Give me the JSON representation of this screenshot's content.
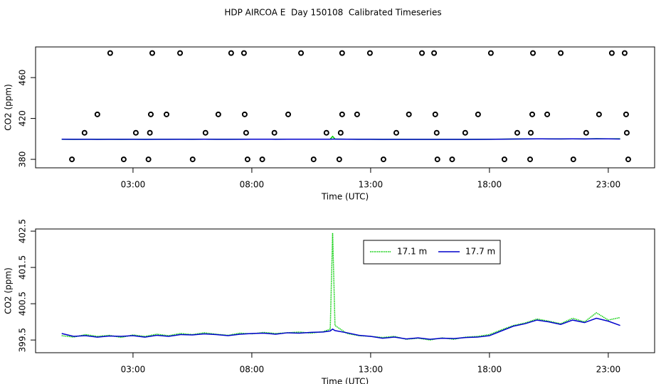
{
  "chart_data": [
    {
      "type": "scatter",
      "title": "HDP AIRCOA E  Day 150108  Calibrated Timeseries",
      "xlabel": "Time (UTC)",
      "ylabel": "CO2 (ppm)",
      "xlim": [
        -1.1,
        24.95
      ],
      "ylim": [
        371.7,
        490
      ],
      "xticks": [
        {
          "value": 3,
          "label": "03:00"
        },
        {
          "value": 8,
          "label": "08:00"
        },
        {
          "value": 13,
          "label": "13:00"
        },
        {
          "value": 18,
          "label": "18:00"
        },
        {
          "value": 23,
          "label": "23:00"
        }
      ],
      "yticks": [
        380,
        420,
        460
      ],
      "point_color": "#000000",
      "x": [
        2.04,
        3.81,
        4.98,
        7.13,
        7.67,
        10.07,
        11.8,
        12.97,
        15.16,
        15.67,
        18.06,
        19.83,
        21.0,
        23.15,
        23.69,
        1.5,
        3.75,
        4.41,
        6.59,
        7.7,
        9.53,
        11.8,
        12.43,
        14.61,
        15.72,
        17.52,
        19.8,
        20.43,
        22.61,
        23.75,
        0.96,
        3.12,
        3.71,
        6.05,
        7.76,
        8.95,
        11.14,
        11.74,
        14.08,
        15.78,
        16.98,
        19.17,
        19.74,
        22.07,
        23.78,
        0.43,
        2.61,
        3.65,
        5.51,
        7.82,
        8.44,
        10.6,
        11.68,
        13.54,
        15.81,
        16.43,
        18.63,
        19.71,
        21.53,
        23.84
      ],
      "values": [
        484,
        484,
        484,
        484,
        484,
        484,
        484,
        484,
        484,
        484,
        484,
        484,
        484,
        484,
        484,
        424,
        424,
        424,
        424,
        424,
        424,
        424,
        424,
        424,
        424,
        424,
        424,
        424,
        424,
        424,
        406,
        406,
        406,
        406,
        406,
        406,
        406,
        406,
        406,
        406,
        406,
        406,
        406,
        406,
        406,
        380,
        380,
        380,
        380,
        380,
        380,
        380,
        380,
        380,
        380,
        380,
        380,
        380,
        380,
        380
      ],
      "line_x": [
        0,
        0.5,
        1,
        1.5,
        2,
        2.5,
        3,
        3.5,
        4,
        4.5,
        5,
        5.5,
        6,
        6.5,
        7,
        7.5,
        8,
        8.5,
        9,
        9.5,
        10,
        10.5,
        11,
        11.3,
        11.4,
        11.5,
        12,
        12.5,
        13,
        13.5,
        14,
        14.5,
        15,
        15.5,
        16,
        16.5,
        17,
        17.5,
        18,
        18.5,
        19,
        19.5,
        20,
        20.5,
        21,
        21.5,
        22,
        22.5,
        23,
        23.5
      ],
      "lines": [
        {
          "color": "#00cc00",
          "values": [
            399.62,
            399.58,
            399.65,
            399.6,
            399.63,
            399.57,
            399.64,
            399.6,
            399.66,
            399.62,
            399.68,
            399.65,
            399.7,
            399.66,
            399.63,
            399.69,
            399.67,
            399.71,
            399.68,
            399.7,
            399.72,
            399.69,
            399.73,
            399.8,
            402.45,
            399.9,
            399.68,
            399.62,
            399.6,
            399.57,
            399.6,
            399.52,
            399.55,
            399.5,
            399.56,
            399.52,
            399.58,
            399.6,
            399.65,
            399.78,
            399.9,
            399.97,
            400.08,
            400.02,
            399.95,
            400.1,
            400.0,
            400.25,
            400.05,
            400.12
          ]
        },
        {
          "color": "#0000cc",
          "values": [
            399.68,
            399.6,
            399.62,
            399.58,
            399.61,
            399.6,
            399.62,
            399.58,
            399.63,
            399.6,
            399.65,
            399.64,
            399.67,
            399.65,
            399.62,
            399.66,
            399.68,
            399.69,
            399.66,
            399.7,
            399.69,
            399.71,
            399.72,
            399.75,
            399.8,
            399.76,
            399.7,
            399.63,
            399.6,
            399.55,
            399.58,
            399.53,
            399.56,
            399.52,
            399.55,
            399.54,
            399.57,
            399.58,
            399.62,
            399.75,
            399.88,
            399.95,
            400.05,
            400.0,
            399.93,
            400.05,
            399.98,
            400.1,
            400.02,
            399.9
          ]
        }
      ]
    },
    {
      "type": "line",
      "xlabel": "Time (UTC)",
      "ylabel": "CO2 (ppm)",
      "xlim": [
        -1.1,
        24.95
      ],
      "ylim": [
        399.15,
        402.56
      ],
      "xticks": [
        {
          "value": 3,
          "label": "03:00"
        },
        {
          "value": 8,
          "label": "08:00"
        },
        {
          "value": 13,
          "label": "13:00"
        },
        {
          "value": 18,
          "label": "18:00"
        },
        {
          "value": 23,
          "label": "23:00"
        }
      ],
      "yticks": [
        399.5,
        400.5,
        401.5,
        402.5
      ],
      "legend": "top",
      "x": [
        0,
        0.5,
        1,
        1.5,
        2,
        2.5,
        3,
        3.5,
        4,
        4.5,
        5,
        5.5,
        6,
        6.5,
        7,
        7.5,
        8,
        8.5,
        9,
        9.5,
        10,
        10.5,
        11,
        11.3,
        11.4,
        11.5,
        12,
        12.5,
        13,
        13.5,
        14,
        14.5,
        15,
        15.5,
        16,
        16.5,
        17,
        17.5,
        18,
        18.5,
        19,
        19.5,
        20,
        20.5,
        21,
        21.5,
        22,
        22.5,
        23,
        23.5
      ],
      "series": [
        {
          "name": "17.1 m",
          "color": "#00cc00",
          "linestyle": "dotted",
          "values": [
            399.62,
            399.58,
            399.65,
            399.6,
            399.63,
            399.57,
            399.64,
            399.6,
            399.66,
            399.62,
            399.68,
            399.65,
            399.7,
            399.66,
            399.63,
            399.69,
            399.67,
            399.71,
            399.68,
            399.7,
            399.72,
            399.69,
            399.73,
            399.8,
            402.45,
            399.9,
            399.68,
            399.62,
            399.6,
            399.57,
            399.6,
            399.52,
            399.55,
            399.5,
            399.56,
            399.52,
            399.58,
            399.6,
            399.65,
            399.78,
            399.9,
            399.97,
            400.08,
            400.02,
            399.95,
            400.1,
            400.0,
            400.25,
            400.05,
            400.12
          ]
        },
        {
          "name": "17.7 m",
          "color": "#0000cc",
          "linestyle": "solid",
          "values": [
            399.68,
            399.6,
            399.62,
            399.58,
            399.61,
            399.6,
            399.62,
            399.58,
            399.63,
            399.6,
            399.65,
            399.64,
            399.67,
            399.65,
            399.62,
            399.66,
            399.68,
            399.69,
            399.66,
            399.7,
            399.69,
            399.71,
            399.72,
            399.75,
            399.8,
            399.76,
            399.7,
            399.63,
            399.6,
            399.55,
            399.58,
            399.53,
            399.56,
            399.52,
            399.55,
            399.54,
            399.57,
            399.58,
            399.62,
            399.75,
            399.88,
            399.95,
            400.05,
            400.0,
            399.93,
            400.05,
            399.98,
            400.1,
            400.02,
            399.9
          ]
        }
      ]
    }
  ]
}
